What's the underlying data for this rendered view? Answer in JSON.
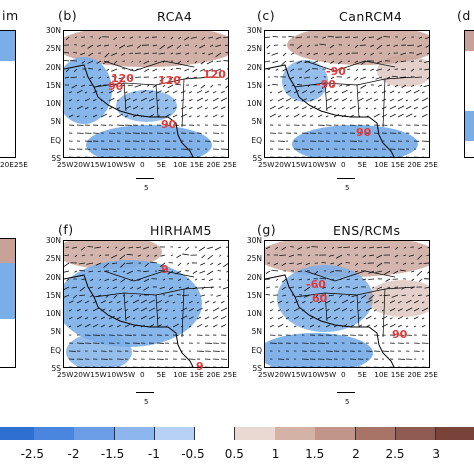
{
  "panels": [
    {
      "id": "a",
      "title_fragment": "im",
      "letter": "",
      "title": "",
      "partial": "left",
      "lat_labels": [],
      "lon_labels": [
        "20E",
        "25E"
      ],
      "ref": ""
    },
    {
      "id": "b",
      "letter": "(b)",
      "title": "RCA4",
      "lat_labels": [
        "30N",
        "25N",
        "20N",
        "15N",
        "10N",
        "5N",
        "EQ",
        "5S"
      ],
      "lon_labels": [
        "25W",
        "20W",
        "15W",
        "10W",
        "5W",
        "0",
        "5E",
        "10E",
        "15E",
        "20E",
        "25E"
      ],
      "ref": "5",
      "annotations": [
        "120",
        "90",
        "120",
        "120",
        "90"
      ]
    },
    {
      "id": "c",
      "letter": "(c)",
      "title": "CanRCM4",
      "lat_labels": [
        "30N",
        "25N",
        "20N",
        "15N",
        "10N",
        "5N",
        "EQ",
        "5S"
      ],
      "lon_labels": [
        "25W",
        "20W",
        "15W",
        "10W",
        "5W",
        "0",
        "5E",
        "10E",
        "15E",
        "20E",
        "25E"
      ],
      "ref": "5",
      "annotations": [
        "-90",
        "-90",
        "90"
      ]
    },
    {
      "id": "d",
      "letter": "(d",
      "title": "",
      "partial": "right",
      "lat_labels": [],
      "lon_labels": [],
      "ref": ""
    },
    {
      "id": "e",
      "title_fragment": "",
      "letter": "",
      "title": "",
      "partial": "left",
      "lat_labels": [],
      "lon_labels": [],
      "ref": ""
    },
    {
      "id": "f",
      "letter": "(f)",
      "title": "HIRHAM5",
      "lat_labels": [
        "30N",
        "25N",
        "20N",
        "15N",
        "10N",
        "5N",
        "EQ",
        "5S"
      ],
      "lon_labels": [
        "25W",
        "20W",
        "15W",
        "10W",
        "5W",
        "0",
        "5E",
        "10E",
        "15E",
        "20E",
        "25E"
      ],
      "ref": "5",
      "annotations": [
        "9",
        "9"
      ]
    },
    {
      "id": "g",
      "letter": "(g)",
      "title": "ENS/RCMs",
      "lat_labels": [
        "30N",
        "25N",
        "20N",
        "15N",
        "10N",
        "5N",
        "EQ",
        "5S"
      ],
      "lon_labels": [
        "25W",
        "20W",
        "15W",
        "10W",
        "5W",
        "0",
        "5E",
        "10E",
        "15E",
        "20E",
        "25E"
      ],
      "ref": "5",
      "annotations": [
        "-60",
        "60",
        "90"
      ]
    }
  ],
  "colorbar": {
    "ticks": [
      "-2.5",
      "-2",
      "-1.5",
      "-1",
      "-0.5",
      "0.5",
      "1",
      "1.5",
      "2",
      "2.5",
      "3"
    ],
    "colors": [
      "#2e6fd1",
      "#4a86de",
      "#6a9de6",
      "#8db6ee",
      "#b7d1f5",
      "#ffffff",
      "#ead9d3",
      "#d5b2a6",
      "#c1958a",
      "#a87468",
      "#8f5a4f",
      "#7a4339"
    ]
  },
  "colors": {
    "negative_anomaly": "#7aaee8",
    "positive_anomaly": "#c8a298",
    "annotation": "#e23a3a"
  }
}
